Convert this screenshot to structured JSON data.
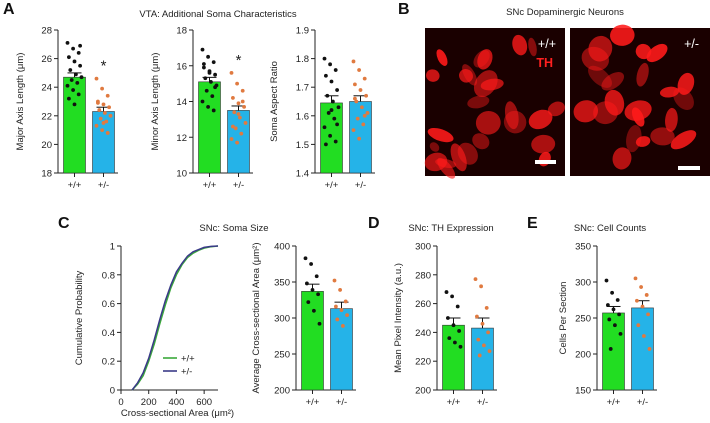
{
  "colors": {
    "wt": "#22dd22",
    "het": "#25b3e8",
    "wt_dot": "#111111",
    "het_dot": "#e07a40",
    "axis": "#222222",
    "wt_line": "#3aa83a",
    "het_line": "#3a3a88",
    "micro_bg": "#1a0000",
    "micro_cell": "#ff1a1a"
  },
  "panels": {
    "A": {
      "letter": "A",
      "title": "VTA: Additional Soma Characteristics"
    },
    "B": {
      "letter": "B",
      "title": "SNc Dopaminergic Neurons",
      "left_genotype": "+/+",
      "left_stain": "TH",
      "right_genotype": "+/-"
    },
    "C": {
      "letter": "C",
      "title": "SNc: Soma Size"
    },
    "D": {
      "letter": "D",
      "title": "SNc: TH Expression"
    },
    "E": {
      "letter": "E",
      "title": "SNc: Cell Counts"
    }
  },
  "chart_data": [
    {
      "id": "A1",
      "type": "bar",
      "title": "",
      "ylabel": "Major Axis Length (μm)",
      "xlabel": "",
      "categories": [
        "+/+",
        "+/-"
      ],
      "values": [
        24.7,
        22.3
      ],
      "sem": [
        0.3,
        0.3
      ],
      "ylim": [
        18,
        28
      ],
      "yticks": [
        18,
        20,
        22,
        24,
        26,
        28
      ],
      "sig": "*",
      "points": [
        [
          27.1,
          26.7,
          26.4,
          26.1,
          25.8,
          25.5,
          25.2,
          24.9,
          24.7,
          24.5,
          24.3,
          24.1,
          23.8,
          23.5,
          23.2,
          22.8,
          26.9
        ],
        [
          24.6,
          23.9,
          23.4,
          23.0,
          22.8,
          22.6,
          22.4,
          22.2,
          22.0,
          21.8,
          21.6,
          21.3,
          21.0,
          20.8,
          22.9,
          21.5
        ]
      ]
    },
    {
      "id": "A2",
      "type": "bar",
      "title": "",
      "ylabel": "Minor Axis Length (μm)",
      "xlabel": "",
      "categories": [
        "+/+",
        "+/-"
      ],
      "values": [
        15.1,
        13.5
      ],
      "sem": [
        0.25,
        0.25
      ],
      "ylim": [
        10,
        18
      ],
      "yticks": [
        10,
        12,
        14,
        16,
        18
      ],
      "sig": "*",
      "points": [
        [
          16.9,
          16.5,
          16.2,
          15.9,
          15.7,
          15.5,
          15.3,
          15.1,
          14.9,
          14.6,
          14.3,
          14.0,
          13.7,
          13.5,
          16.1,
          15.6,
          14.8
        ],
        [
          15.6,
          15.0,
          14.6,
          14.2,
          13.9,
          13.7,
          13.4,
          13.1,
          12.8,
          12.5,
          12.2,
          11.9,
          11.7,
          14.0,
          12.6,
          13.3
        ]
      ]
    },
    {
      "id": "A3",
      "type": "bar",
      "title": "",
      "ylabel": "Soma Aspect Ratio",
      "xlabel": "",
      "categories": [
        "+/+",
        "+/-"
      ],
      "values": [
        1.645,
        1.65
      ],
      "sem": [
        0.025,
        0.02
      ],
      "ylim": [
        1.4,
        1.9
      ],
      "yticks": [
        1.4,
        1.5,
        1.6,
        1.7,
        1.8,
        1.9
      ],
      "sig": "",
      "points": [
        [
          1.8,
          1.78,
          1.76,
          1.74,
          1.72,
          1.69,
          1.67,
          1.65,
          1.63,
          1.61,
          1.59,
          1.56,
          1.53,
          1.51,
          1.5,
          1.62,
          1.57
        ],
        [
          1.79,
          1.76,
          1.73,
          1.71,
          1.69,
          1.67,
          1.65,
          1.63,
          1.61,
          1.59,
          1.57,
          1.55,
          1.52,
          1.6,
          1.66
        ]
      ]
    },
    {
      "id": "C1",
      "type": "line",
      "title": "",
      "xlabel": "Cross-sectional Area (μm²)",
      "ylabel": "Cumulative Probability",
      "xlim": [
        0,
        700
      ],
      "ylim": [
        0,
        1
      ],
      "xticks": [
        0,
        200,
        400,
        600
      ],
      "yticks": [
        0,
        0.2,
        0.4,
        0.6,
        0.8,
        1
      ],
      "series": [
        {
          "name": "+/+",
          "x": [
            80,
            120,
            160,
            200,
            240,
            280,
            320,
            360,
            400,
            440,
            480,
            520,
            560,
            600,
            650,
            700
          ],
          "y": [
            0,
            0.04,
            0.1,
            0.2,
            0.32,
            0.46,
            0.59,
            0.71,
            0.8,
            0.87,
            0.92,
            0.95,
            0.97,
            0.985,
            0.995,
            1.0
          ]
        },
        {
          "name": "+/-",
          "x": [
            80,
            120,
            160,
            200,
            240,
            280,
            320,
            360,
            400,
            440,
            480,
            520,
            560,
            600,
            650,
            700
          ],
          "y": [
            0,
            0.05,
            0.12,
            0.22,
            0.35,
            0.49,
            0.62,
            0.73,
            0.82,
            0.88,
            0.93,
            0.96,
            0.975,
            0.99,
            0.997,
            1.0
          ]
        }
      ],
      "legend": "bottom-right"
    },
    {
      "id": "C2",
      "type": "bar",
      "title": "",
      "ylabel": "Average Cross-sectional Area (μm²)",
      "xlabel": "",
      "categories": [
        "+/+",
        "+/-"
      ],
      "values": [
        337,
        313
      ],
      "sem": [
        10,
        9
      ],
      "ylim": [
        200,
        400
      ],
      "yticks": [
        200,
        250,
        300,
        350,
        400
      ],
      "sig": "",
      "points": [
        [
          383,
          375,
          358,
          348,
          339,
          333,
          322,
          310,
          292
        ],
        [
          352,
          339,
          323,
          316,
          311,
          304,
          298,
          289
        ]
      ]
    },
    {
      "id": "D",
      "type": "bar",
      "title": "",
      "ylabel": "Mean Pixel Intensity (a.u.)",
      "xlabel": "",
      "categories": [
        "+/+",
        "+/-"
      ],
      "values": [
        245,
        243
      ],
      "sem": [
        5,
        7
      ],
      "ylim": [
        200,
        300
      ],
      "yticks": [
        200,
        220,
        240,
        260,
        280,
        300
      ],
      "sig": "",
      "points": [
        [
          268,
          265,
          258,
          250,
          245,
          241,
          236,
          233,
          230
        ],
        [
          277,
          272,
          257,
          251,
          246,
          240,
          235,
          231,
          227,
          224
        ]
      ]
    },
    {
      "id": "E",
      "type": "bar",
      "title": "",
      "ylabel": "Cells Per Section",
      "xlabel": "",
      "categories": [
        "+/+",
        "+/-"
      ],
      "values": [
        257,
        264
      ],
      "sem": [
        9,
        10
      ],
      "ylim": [
        150,
        350
      ],
      "yticks": [
        150,
        200,
        250,
        300,
        350
      ],
      "sig": "",
      "points": [
        [
          302,
          285,
          275,
          268,
          262,
          255,
          248,
          240,
          228,
          207
        ],
        [
          305,
          293,
          282,
          274,
          266,
          255,
          240,
          225,
          207
        ]
      ]
    }
  ]
}
